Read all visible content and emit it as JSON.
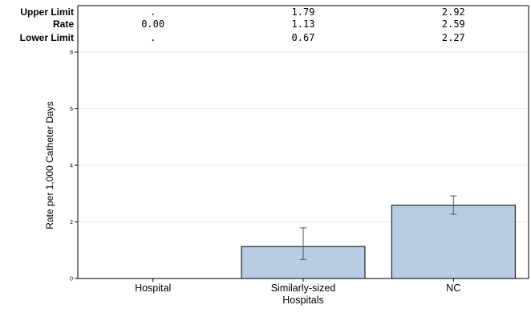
{
  "chart_data": {
    "type": "bar",
    "categories": [
      "Hospital",
      "Similarly-sized Hospitals",
      "NC"
    ],
    "category_label_lines": [
      [
        "Hospital"
      ],
      [
        "Similarly-sized",
        "Hospitals"
      ],
      [
        "NC"
      ]
    ],
    "values": [
      0.0,
      1.13,
      2.59
    ],
    "error_bars": {
      "upper": [
        null,
        1.79,
        2.92
      ],
      "lower": [
        null,
        0.67,
        2.27
      ]
    },
    "ylabel": "Rate per 1,000 Catheter Days",
    "xlabel": "",
    "ylim": [
      0,
      8
    ],
    "yticks": [
      0,
      2,
      4,
      6,
      8
    ],
    "grid": "horizontal",
    "colors": {
      "bar_fill": "#b8cce4",
      "bar_stroke": "#000000",
      "grid": "#e6e6e6",
      "axis": "#000000",
      "whisker": "#555555"
    },
    "stats_table": {
      "rows": [
        {
          "label": "Upper Limit",
          "values": [
            ".",
            "1.79",
            "2.92"
          ]
        },
        {
          "label": "Rate",
          "values": [
            "0.00",
            "1.13",
            "2.59"
          ]
        },
        {
          "label": "Lower Limit",
          "values": [
            ".",
            "0.67",
            "2.27"
          ]
        }
      ]
    }
  }
}
